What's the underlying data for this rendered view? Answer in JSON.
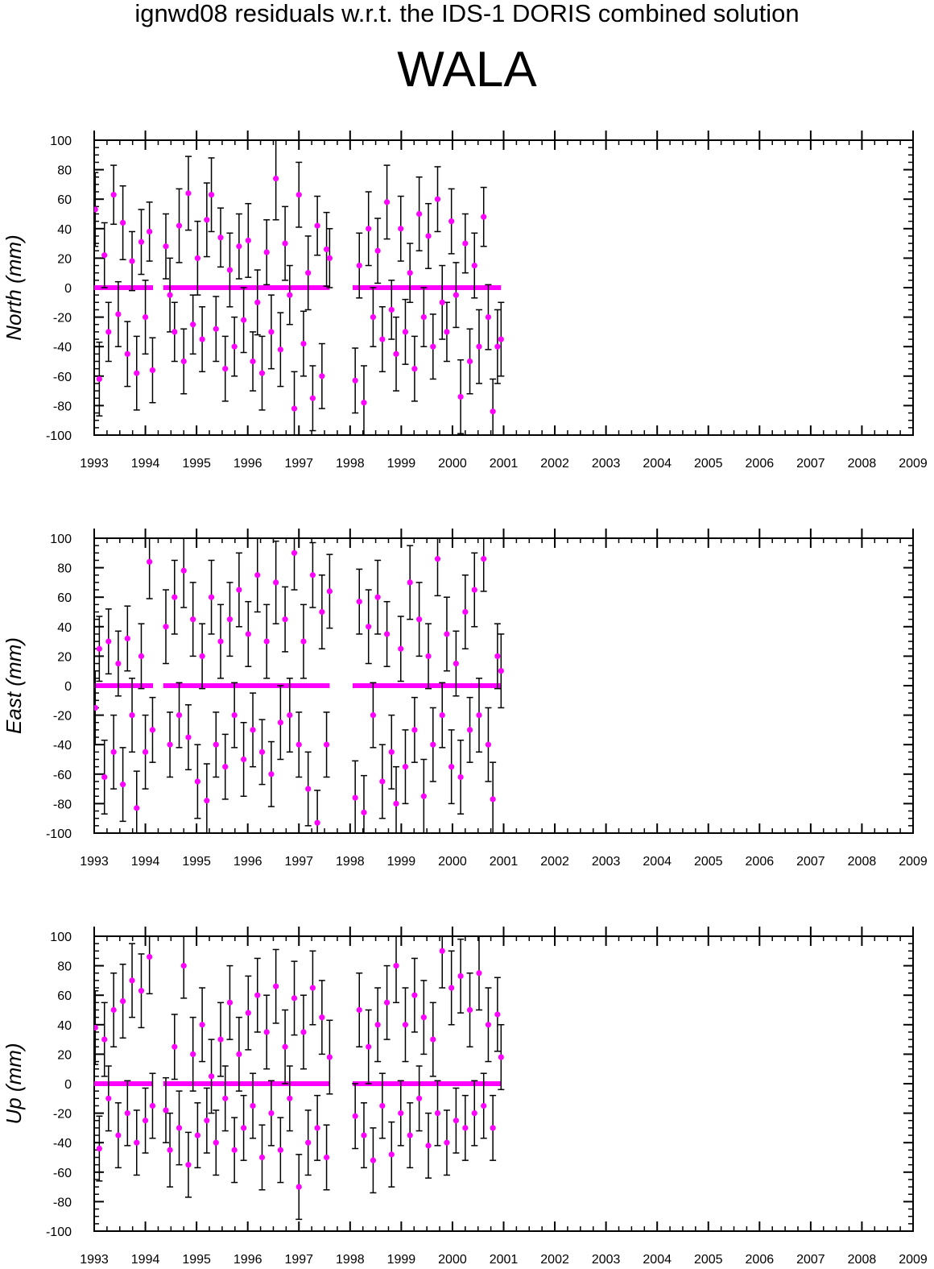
{
  "header": {
    "title": "ignwd08 residuals w.r.t. the IDS-1 DORIS combined solution",
    "station": "WALA"
  },
  "colors": {
    "point": "#ff00ff",
    "errorbar": "#000000",
    "axis": "#000000",
    "background": "#ffffff"
  },
  "chart_data": [
    {
      "type": "scatter",
      "title": "",
      "xlabel": "",
      "ylabel": "North (mm)",
      "xlim": [
        1993,
        2009
      ],
      "ylim": [
        -100,
        100
      ],
      "x_ticks": [
        "1993",
        "1994",
        "1995",
        "1996",
        "1997",
        "1998",
        "1999",
        "2000",
        "2001",
        "2002",
        "2003",
        "2004",
        "2005",
        "2006",
        "2007",
        "2008",
        "2009"
      ],
      "y_ticks": [
        "-100",
        "-80",
        "-60",
        "-40",
        "-20",
        "0",
        "20",
        "40",
        "60",
        "80",
        "100"
      ],
      "grid": false,
      "legend": "none",
      "zero_segments": [
        [
          1993.0,
          1994.15
        ],
        [
          1994.35,
          1997.6
        ],
        [
          1998.05,
          2000.95
        ]
      ],
      "series": [
        {
          "x": [
            1993.02,
            1993.1,
            1993.2,
            1993.28,
            1993.38,
            1993.47,
            1993.56,
            1993.65,
            1993.74,
            1993.83,
            1993.92,
            1994.0,
            1994.08,
            1994.14,
            1994.4,
            1994.48,
            1994.57,
            1994.66,
            1994.75,
            1994.84,
            1994.93,
            1995.02,
            1995.11,
            1995.2,
            1995.29,
            1995.38,
            1995.47,
            1995.56,
            1995.65,
            1995.74,
            1995.83,
            1995.92,
            1996.01,
            1996.1,
            1996.19,
            1996.28,
            1996.37,
            1996.46,
            1996.55,
            1996.64,
            1996.73,
            1996.82,
            1996.91,
            1997.0,
            1997.09,
            1997.18,
            1997.27,
            1997.36,
            1997.45,
            1997.54,
            1997.6,
            1998.1,
            1998.18,
            1998.27,
            1998.36,
            1998.45,
            1998.54,
            1998.63,
            1998.72,
            1998.81,
            1998.9,
            1998.99,
            1999.08,
            1999.17,
            1999.26,
            1999.35,
            1999.44,
            1999.53,
            1999.62,
            1999.71,
            1999.8,
            1999.89,
            1999.98,
            2000.07,
            2000.16,
            2000.25,
            2000.34,
            2000.43,
            2000.52,
            2000.61,
            2000.7,
            2000.79,
            2000.88,
            2000.95
          ],
          "y": [
            53,
            -62,
            22,
            -30,
            63,
            -18,
            44,
            -45,
            18,
            -58,
            31,
            -20,
            38,
            -56,
            28,
            -5,
            -30,
            42,
            -50,
            64,
            -25,
            20,
            -35,
            46,
            63,
            -28,
            34,
            -55,
            12,
            -40,
            28,
            -22,
            32,
            -50,
            -10,
            -58,
            24,
            -30,
            74,
            -42,
            30,
            -5,
            -82,
            63,
            -38,
            10,
            -75,
            42,
            -60,
            26,
            20,
            -63,
            15,
            -78,
            40,
            -20,
            25,
            -35,
            58,
            -15,
            -45,
            40,
            -30,
            10,
            -55,
            50,
            -20,
            35,
            -40,
            60,
            -10,
            -30,
            45,
            -5,
            -74,
            30,
            -50,
            15,
            -40,
            48,
            -20,
            -84,
            -40,
            -35
          ],
          "err": [
            25,
            25,
            22,
            20,
            20,
            22,
            25,
            22,
            20,
            25,
            22,
            25,
            20,
            22,
            22,
            25,
            20,
            25,
            22,
            25,
            20,
            25,
            22,
            25,
            25,
            22,
            20,
            22,
            25,
            20,
            22,
            22,
            25,
            20,
            22,
            25,
            22,
            25,
            28,
            25,
            25,
            20,
            25,
            22,
            22,
            25,
            22,
            20,
            22,
            25,
            20,
            22,
            22,
            25,
            25,
            20,
            22,
            22,
            25,
            20,
            25,
            22,
            22,
            20,
            22,
            25,
            20,
            22,
            22,
            22,
            25,
            20,
            22,
            22,
            25,
            20,
            22,
            22,
            25,
            20,
            22,
            22,
            25,
            25
          ]
        }
      ]
    },
    {
      "type": "scatter",
      "title": "",
      "xlabel": "",
      "ylabel": "East (mm)",
      "xlim": [
        1993,
        2009
      ],
      "ylim": [
        -100,
        100
      ],
      "x_ticks": [
        "1993",
        "1994",
        "1995",
        "1996",
        "1997",
        "1998",
        "1999",
        "2000",
        "2001",
        "2002",
        "2003",
        "2004",
        "2005",
        "2006",
        "2007",
        "2008",
        "2009"
      ],
      "y_ticks": [
        "-100",
        "-80",
        "-60",
        "-40",
        "-20",
        "0",
        "20",
        "40",
        "60",
        "80",
        "100"
      ],
      "grid": false,
      "legend": "none",
      "zero_segments": [
        [
          1993.0,
          1994.15
        ],
        [
          1994.35,
          1997.6
        ],
        [
          1998.05,
          2000.95
        ]
      ],
      "series": [
        {
          "x": [
            1993.02,
            1993.1,
            1993.2,
            1993.28,
            1993.38,
            1993.47,
            1993.56,
            1993.65,
            1993.74,
            1993.83,
            1993.92,
            1994.0,
            1994.08,
            1994.14,
            1994.4,
            1994.48,
            1994.57,
            1994.66,
            1994.75,
            1994.84,
            1994.93,
            1995.02,
            1995.11,
            1995.2,
            1995.29,
            1995.38,
            1995.47,
            1995.56,
            1995.65,
            1995.74,
            1995.83,
            1995.92,
            1996.01,
            1996.1,
            1996.19,
            1996.28,
            1996.37,
            1996.46,
            1996.55,
            1996.64,
            1996.73,
            1996.82,
            1996.91,
            1997.0,
            1997.09,
            1997.18,
            1997.27,
            1997.36,
            1997.45,
            1997.54,
            1997.6,
            1998.1,
            1998.18,
            1998.27,
            1998.36,
            1998.45,
            1998.54,
            1998.63,
            1998.72,
            1998.81,
            1998.9,
            1998.99,
            1999.08,
            1999.17,
            1999.26,
            1999.35,
            1999.44,
            1999.53,
            1999.62,
            1999.71,
            1999.8,
            1999.89,
            1999.98,
            2000.07,
            2000.16,
            2000.25,
            2000.34,
            2000.43,
            2000.52,
            2000.61,
            2000.7,
            2000.79,
            2000.88,
            2000.95
          ],
          "y": [
            -15,
            25,
            -62,
            30,
            -45,
            15,
            -67,
            32,
            -20,
            -83,
            20,
            -45,
            84,
            -30,
            40,
            -40,
            60,
            -20,
            78,
            -35,
            45,
            -65,
            20,
            -78,
            60,
            -40,
            30,
            -55,
            45,
            -20,
            65,
            -50,
            35,
            -30,
            75,
            -45,
            30,
            -60,
            70,
            -25,
            45,
            -20,
            90,
            -40,
            30,
            -70,
            75,
            -93,
            50,
            -40,
            64,
            -76,
            57,
            -86,
            40,
            -20,
            60,
            -65,
            35,
            -45,
            -80,
            25,
            -55,
            70,
            -30,
            45,
            -75,
            20,
            -40,
            86,
            -20,
            35,
            -55,
            15,
            -62,
            50,
            -30,
            65,
            -20,
            86,
            -40,
            -77,
            20,
            10
          ],
          "err": [
            25,
            22,
            25,
            22,
            25,
            22,
            25,
            22,
            25,
            25,
            22,
            25,
            25,
            22,
            25,
            22,
            25,
            22,
            25,
            22,
            25,
            25,
            22,
            25,
            25,
            22,
            25,
            22,
            25,
            22,
            25,
            25,
            22,
            25,
            25,
            22,
            25,
            22,
            28,
            25,
            22,
            25,
            25,
            22,
            25,
            25,
            22,
            22,
            25,
            22,
            25,
            25,
            22,
            25,
            25,
            22,
            25,
            25,
            22,
            25,
            25,
            22,
            25,
            25,
            22,
            25,
            25,
            22,
            25,
            25,
            22,
            25,
            25,
            22,
            25,
            25,
            22,
            25,
            25,
            22,
            25,
            25,
            22,
            25
          ]
        }
      ]
    },
    {
      "type": "scatter",
      "title": "",
      "xlabel": "",
      "ylabel": "Up (mm)",
      "xlim": [
        1993,
        2009
      ],
      "ylim": [
        -100,
        100
      ],
      "x_ticks": [
        "1993",
        "1994",
        "1995",
        "1996",
        "1997",
        "1998",
        "1999",
        "2000",
        "2001",
        "2002",
        "2003",
        "2004",
        "2005",
        "2006",
        "2007",
        "2008",
        "2009"
      ],
      "y_ticks": [
        "-100",
        "-80",
        "-60",
        "-40",
        "-20",
        "0",
        "20",
        "40",
        "60",
        "80",
        "100"
      ],
      "grid": false,
      "legend": "none",
      "zero_segments": [
        [
          1993.0,
          1994.15
        ],
        [
          1994.35,
          1997.6
        ],
        [
          1998.05,
          2000.95
        ]
      ],
      "series": [
        {
          "x": [
            1993.02,
            1993.1,
            1993.2,
            1993.28,
            1993.38,
            1993.47,
            1993.56,
            1993.65,
            1993.74,
            1993.83,
            1993.92,
            1994.0,
            1994.08,
            1994.14,
            1994.4,
            1994.48,
            1994.57,
            1994.66,
            1994.75,
            1994.84,
            1994.93,
            1995.02,
            1995.11,
            1995.2,
            1995.29,
            1995.38,
            1995.47,
            1995.56,
            1995.65,
            1995.74,
            1995.83,
            1995.92,
            1996.01,
            1996.1,
            1996.19,
            1996.28,
            1996.37,
            1996.46,
            1996.55,
            1996.64,
            1996.73,
            1996.82,
            1996.91,
            1997.0,
            1997.09,
            1997.18,
            1997.27,
            1997.36,
            1997.45,
            1997.54,
            1997.6,
            1998.1,
            1998.18,
            1998.27,
            1998.36,
            1998.45,
            1998.54,
            1998.63,
            1998.72,
            1998.81,
            1998.9,
            1998.99,
            1999.08,
            1999.17,
            1999.26,
            1999.35,
            1999.44,
            1999.53,
            1999.62,
            1999.71,
            1999.8,
            1999.89,
            1999.98,
            2000.07,
            2000.16,
            2000.25,
            2000.34,
            2000.43,
            2000.52,
            2000.61,
            2000.7,
            2000.79,
            2000.88,
            2000.95
          ],
          "y": [
            38,
            -44,
            30,
            -10,
            50,
            -35,
            56,
            -20,
            70,
            -40,
            63,
            -25,
            86,
            -15,
            -18,
            -45,
            25,
            -30,
            80,
            -55,
            20,
            -35,
            40,
            -25,
            5,
            -40,
            30,
            -10,
            55,
            -45,
            20,
            -30,
            48,
            -15,
            60,
            -50,
            35,
            -20,
            66,
            -45,
            25,
            -10,
            58,
            -70,
            35,
            -40,
            65,
            -30,
            45,
            -50,
            18,
            -22,
            50,
            -35,
            25,
            -52,
            40,
            -15,
            55,
            -48,
            80,
            -20,
            40,
            -35,
            60,
            -10,
            45,
            -42,
            30,
            -20,
            90,
            -40,
            65,
            -25,
            73,
            -30,
            50,
            -20,
            75,
            -15,
            40,
            -30,
            47,
            18
          ],
          "err": [
            25,
            22,
            25,
            22,
            25,
            22,
            25,
            22,
            25,
            22,
            25,
            22,
            25,
            22,
            22,
            25,
            22,
            25,
            22,
            22,
            25,
            22,
            25,
            22,
            25,
            22,
            25,
            22,
            25,
            22,
            25,
            22,
            25,
            22,
            25,
            22,
            25,
            22,
            25,
            22,
            25,
            22,
            25,
            22,
            25,
            22,
            25,
            22,
            25,
            22,
            25,
            22,
            25,
            22,
            25,
            22,
            25,
            22,
            25,
            22,
            25,
            22,
            25,
            22,
            25,
            22,
            25,
            22,
            25,
            22,
            25,
            22,
            25,
            22,
            25,
            22,
            25,
            22,
            25,
            22,
            25,
            22,
            25,
            22
          ]
        }
      ]
    }
  ]
}
